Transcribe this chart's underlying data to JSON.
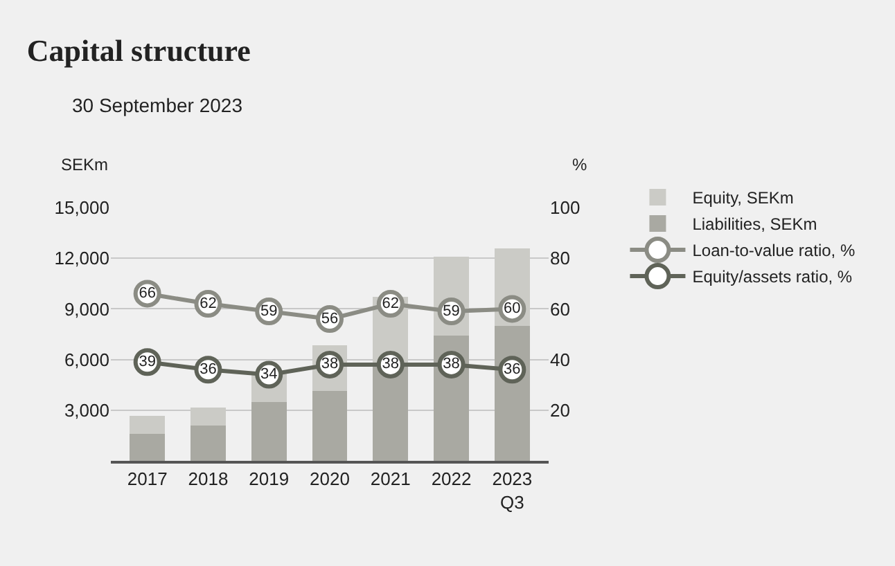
{
  "chart_data": {
    "type": "bar",
    "title": "Capital structure",
    "subtitle": "30 September 2023",
    "ylabel": "SEKm",
    "y2label": "%",
    "categories": [
      "2017",
      "2018",
      "2019",
      "2020",
      "2021",
      "2022",
      "2023 Q3"
    ],
    "stacked": true,
    "series": [
      {
        "name": "Liabilities, SEKm",
        "color": "#a9a9a2",
        "values": [
          1600,
          2100,
          3500,
          4150,
          5750,
          7400,
          8000
        ]
      },
      {
        "name": "Equity, SEKm",
        "color": "#cbcbc6",
        "values": [
          1050,
          1050,
          1800,
          2700,
          3950,
          4700,
          4600
        ]
      },
      {
        "name": "Loan-to-value ratio, %",
        "type": "line",
        "axis": "y2",
        "color": "#8b8c84",
        "values": [
          66,
          62,
          59,
          56,
          62,
          59,
          60
        ],
        "value_labels": [
          "66",
          "62",
          "59",
          "56",
          "62",
          "59",
          "60"
        ]
      },
      {
        "name": "Equity/assets ratio, %",
        "type": "line",
        "axis": "y2",
        "color": "#5f6358",
        "values": [
          39,
          36,
          34,
          38,
          38,
          38,
          36
        ],
        "value_labels": [
          "39",
          "36",
          "34",
          "38",
          "38",
          "38",
          "36"
        ]
      }
    ],
    "ylim": [
      0,
      15000
    ],
    "yticks": [
      {
        "value": 3000,
        "label": "3,000"
      },
      {
        "value": 6000,
        "label": "6,000"
      },
      {
        "value": 9000,
        "label": "9,000"
      },
      {
        "value": 12000,
        "label": "12,000"
      },
      {
        "value": 15000,
        "label": "15,000"
      }
    ],
    "y2lim": [
      0,
      100
    ],
    "y2ticks": [
      20,
      40,
      60,
      80,
      100
    ],
    "grid": "y",
    "legend": "right",
    "marker": "circle"
  }
}
